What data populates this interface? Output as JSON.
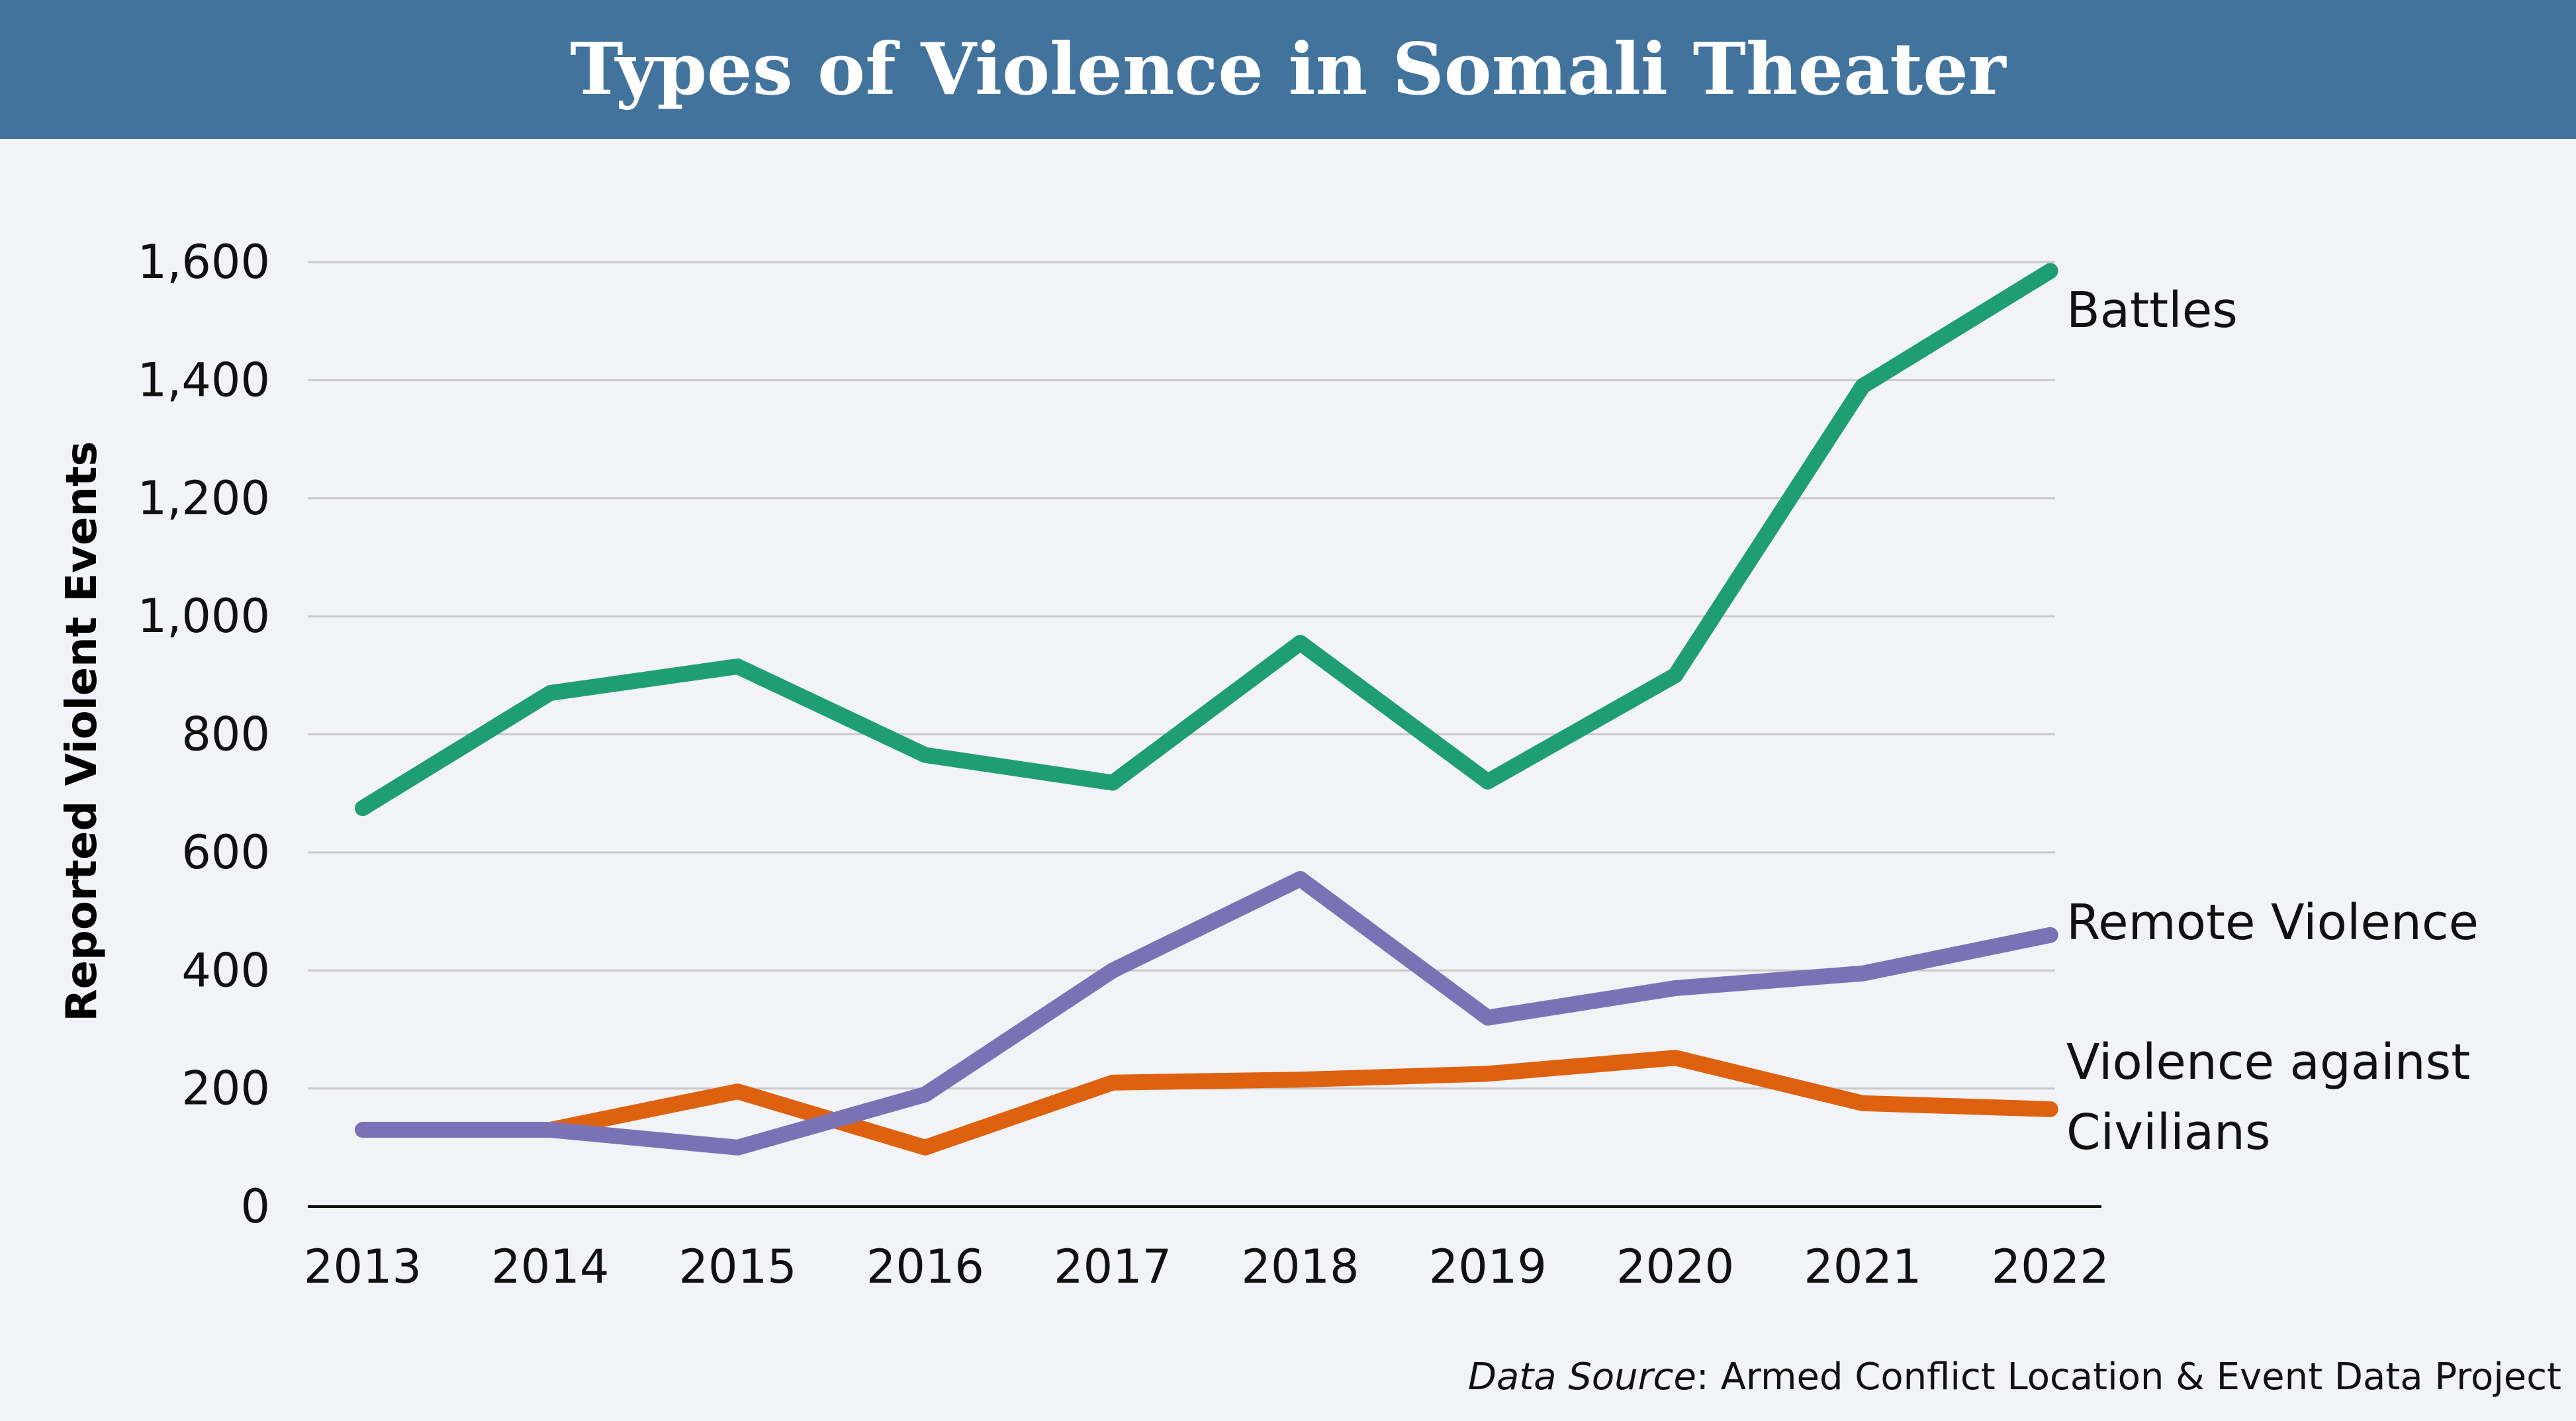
{
  "title": "Types of Violence in Somali Theater",
  "source": {
    "label": "Data Source",
    "separator": ":",
    "text": " Armed Conflict Location & Event Data Project"
  },
  "chart_data": {
    "type": "line",
    "title": "Types of Violence in Somali Theater",
    "xlabel": "",
    "ylabel": "Reported Violent Events",
    "ylim": [
      0,
      1600
    ],
    "yticks": [
      0,
      200,
      400,
      600,
      800,
      1000,
      1200,
      1400,
      1600
    ],
    "ytick_labels": [
      "0",
      "200",
      "400",
      "600",
      "800",
      "1,000",
      "1,200",
      "1,400",
      "1,600"
    ],
    "grid": true,
    "legend": "inline labels at right end of lines",
    "categories": [
      "2013",
      "2014",
      "2015",
      "2016",
      "2017",
      "2018",
      "2019",
      "2020",
      "2021",
      "2022"
    ],
    "series": [
      {
        "name": "Battles",
        "label_lines": [
          "Battles"
        ],
        "color": "#1f9e74",
        "values": [
          675,
          870,
          915,
          765,
          718,
          955,
          720,
          900,
          1390,
          1585
        ]
      },
      {
        "name": "Remote Violence",
        "label_lines": [
          "Remote Violence"
        ],
        "color": "#7b72b6",
        "values": [
          130,
          130,
          100,
          190,
          400,
          555,
          320,
          370,
          395,
          460
        ]
      },
      {
        "name": "Violence against Civilians",
        "label_lines": [
          "Violence against",
          "Civilians"
        ],
        "color": "#de6110",
        "values": [
          130,
          130,
          195,
          100,
          210,
          215,
          225,
          252,
          175,
          165
        ]
      }
    ]
  }
}
